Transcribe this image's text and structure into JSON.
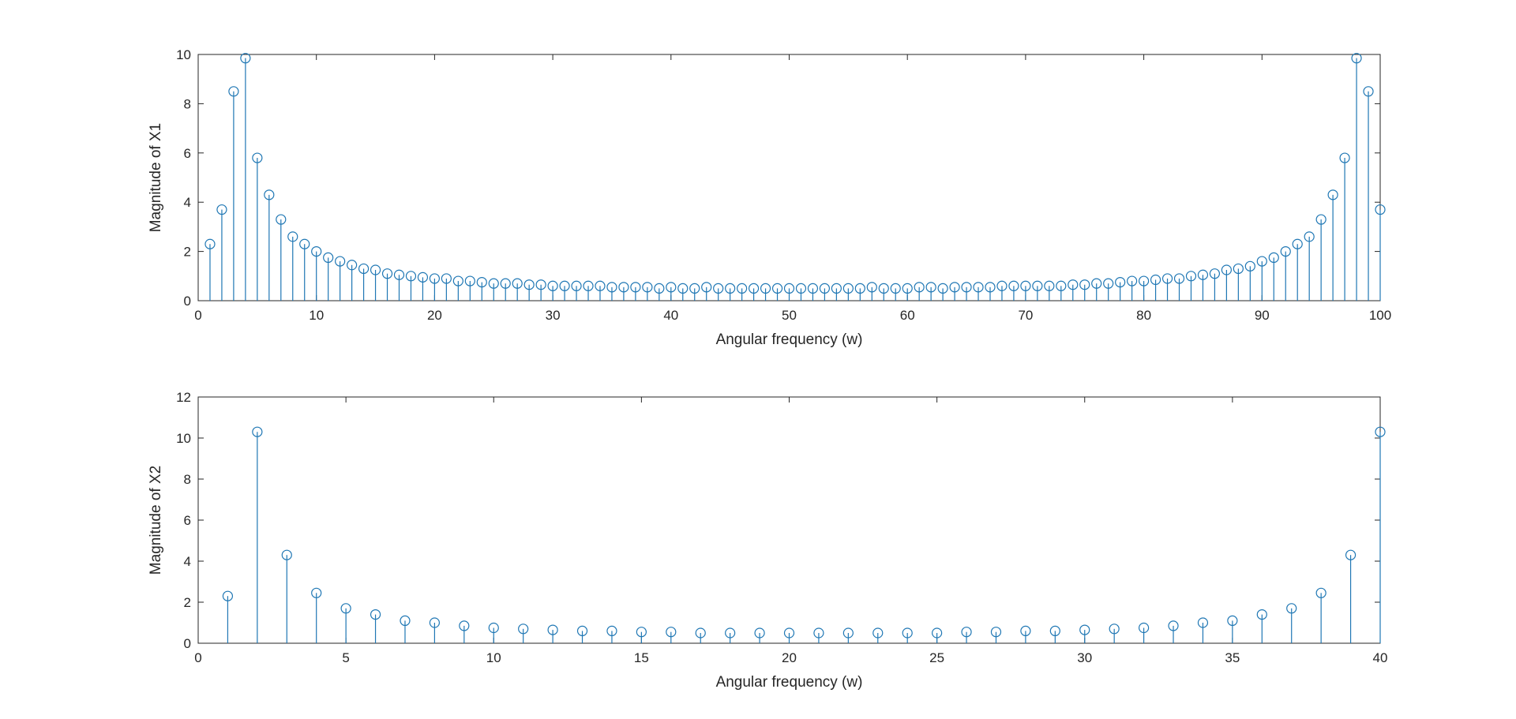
{
  "chart_data": [
    {
      "type": "stem",
      "xlabel": "Angular frequency (w)",
      "ylabel": "Magnitude of X1",
      "xlim": [
        0,
        100
      ],
      "ylim": [
        0,
        10
      ],
      "xticks": [
        0,
        10,
        20,
        30,
        40,
        50,
        60,
        70,
        80,
        90,
        100
      ],
      "yticks": [
        0,
        2,
        4,
        6,
        8,
        10
      ],
      "color": "#1f77b4",
      "x": [
        1,
        2,
        3,
        4,
        5,
        6,
        7,
        8,
        9,
        10,
        11,
        12,
        13,
        14,
        15,
        16,
        17,
        18,
        19,
        20,
        21,
        22,
        23,
        24,
        25,
        26,
        27,
        28,
        29,
        30,
        31,
        32,
        33,
        34,
        35,
        36,
        37,
        38,
        39,
        40,
        41,
        42,
        43,
        44,
        45,
        46,
        47,
        48,
        49,
        50,
        51,
        52,
        53,
        54,
        55,
        56,
        57,
        58,
        59,
        60,
        61,
        62,
        63,
        64,
        65,
        66,
        67,
        68,
        69,
        70,
        71,
        72,
        73,
        74,
        75,
        76,
        77,
        78,
        79,
        80,
        81,
        82,
        83,
        84,
        85,
        86,
        87,
        88,
        89,
        90,
        91,
        92,
        93,
        94,
        95,
        96,
        97,
        98,
        99,
        100
      ],
      "values": [
        2.3,
        3.7,
        8.5,
        9.85,
        5.8,
        4.3,
        3.3,
        2.6,
        2.3,
        2.0,
        1.75,
        1.6,
        1.45,
        1.3,
        1.25,
        1.1,
        1.05,
        1.0,
        0.95,
        0.9,
        0.9,
        0.8,
        0.8,
        0.75,
        0.7,
        0.7,
        0.7,
        0.65,
        0.65,
        0.6,
        0.6,
        0.6,
        0.6,
        0.6,
        0.55,
        0.55,
        0.55,
        0.55,
        0.5,
        0.55,
        0.5,
        0.5,
        0.55,
        0.5,
        0.5,
        0.5,
        0.5,
        0.5,
        0.5,
        0.5,
        0.5,
        0.5,
        0.5,
        0.5,
        0.5,
        0.5,
        0.55,
        0.5,
        0.5,
        0.5,
        0.55,
        0.55,
        0.5,
        0.55,
        0.55,
        0.55,
        0.55,
        0.6,
        0.6,
        0.6,
        0.6,
        0.6,
        0.6,
        0.65,
        0.65,
        0.7,
        0.7,
        0.75,
        0.8,
        0.8,
        0.85,
        0.9,
        0.9,
        1.0,
        1.05,
        1.1,
        1.25,
        1.3,
        1.4,
        1.6,
        1.75,
        2.0,
        2.3,
        2.6,
        3.3,
        4.3,
        5.8,
        9.85,
        8.5,
        3.7
      ]
    },
    {
      "type": "stem",
      "xlabel": "Angular frequency (w)",
      "ylabel": "Magnitude of X2",
      "xlim": [
        0,
        40
      ],
      "ylim": [
        0,
        12
      ],
      "xticks": [
        0,
        5,
        10,
        15,
        20,
        25,
        30,
        35,
        40
      ],
      "yticks": [
        0,
        2,
        4,
        6,
        8,
        10,
        12
      ],
      "color": "#1f77b4",
      "x": [
        1,
        2,
        3,
        4,
        5,
        6,
        7,
        8,
        9,
        10,
        11,
        12,
        13,
        14,
        15,
        16,
        17,
        18,
        19,
        20,
        21,
        22,
        23,
        24,
        25,
        26,
        27,
        28,
        29,
        30,
        31,
        32,
        33,
        34,
        35,
        36,
        37,
        38,
        39,
        40
      ],
      "values": [
        2.3,
        10.3,
        4.3,
        2.45,
        1.7,
        1.4,
        1.1,
        1.0,
        0.85,
        0.75,
        0.7,
        0.65,
        0.6,
        0.6,
        0.55,
        0.55,
        0.5,
        0.5,
        0.5,
        0.5,
        0.5,
        0.5,
        0.5,
        0.5,
        0.5,
        0.55,
        0.55,
        0.6,
        0.6,
        0.65,
        0.7,
        0.75,
        0.85,
        1.0,
        1.1,
        1.4,
        1.7,
        2.45,
        4.3,
        10.3
      ]
    }
  ]
}
